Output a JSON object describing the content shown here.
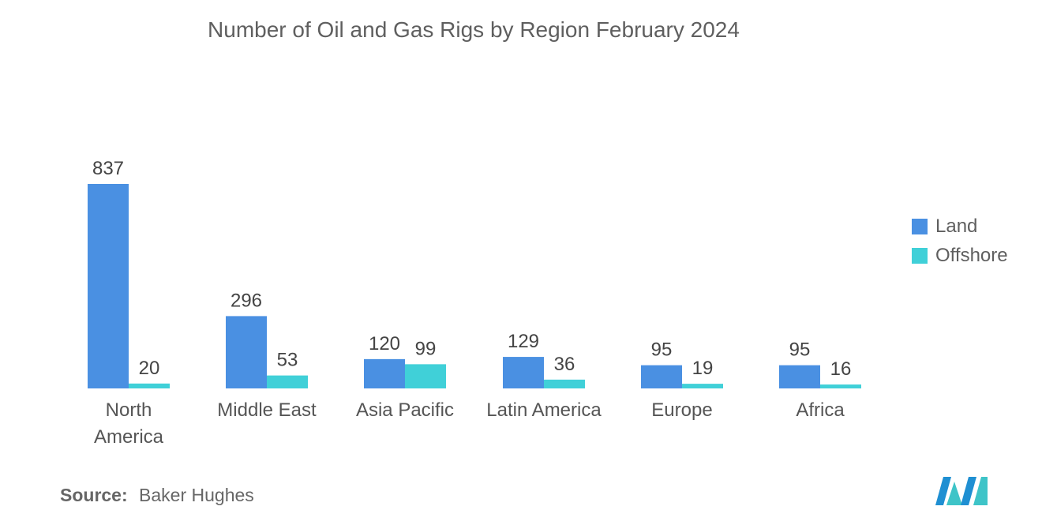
{
  "chart_data": {
    "type": "bar",
    "title": "Number of Oil and Gas Rigs by Region February 2024",
    "categories": [
      [
        "North",
        "America"
      ],
      [
        "Middle East"
      ],
      [
        "Asia Pacific"
      ],
      [
        "Latin America"
      ],
      [
        "Europe"
      ],
      [
        "Africa"
      ]
    ],
    "series": [
      {
        "name": "Land",
        "color": "#4a90e2",
        "values": [
          837,
          296,
          120,
          129,
          95,
          95
        ]
      },
      {
        "name": "Offshore",
        "color": "#40d0d8",
        "values": [
          20,
          53,
          99,
          36,
          19,
          16
        ]
      }
    ],
    "ylim": [
      0,
      837
    ],
    "grid": false,
    "legend_position": "right",
    "data_labels": true
  },
  "source": {
    "label": "Source:",
    "text": "Baker Hughes"
  },
  "logo": {
    "icon": "mordor-intelligence-logo-icon",
    "colors": [
      "#1f8fd2",
      "#3ec4c8"
    ]
  }
}
